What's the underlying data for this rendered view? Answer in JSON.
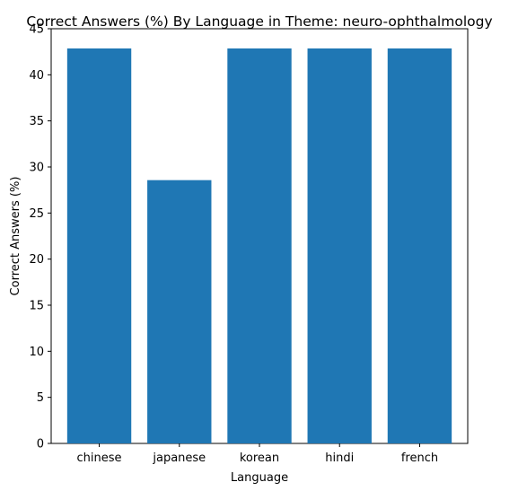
{
  "chart_data": {
    "type": "bar",
    "title": "Correct Answers (%) By Language in Theme: neuro-ophthalmology",
    "xlabel": "Language",
    "ylabel": "Correct Answers (%)",
    "categories": [
      "chinese",
      "japanese",
      "korean",
      "hindi",
      "french"
    ],
    "values": [
      42.86,
      28.57,
      42.86,
      42.86,
      42.86
    ],
    "ylim": [
      0,
      45
    ],
    "yticks": [
      0,
      5,
      10,
      15,
      20,
      25,
      30,
      35,
      40,
      45
    ],
    "grid": false,
    "bar_color": "#1f77b4"
  }
}
